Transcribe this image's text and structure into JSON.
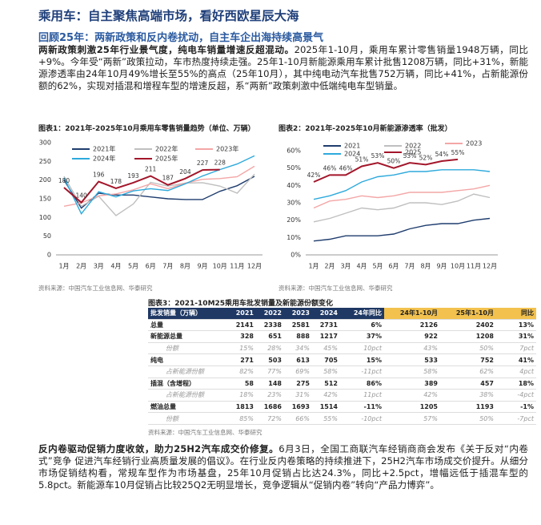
{
  "header": {
    "title": "乘用车：自主聚焦高端市场，看好西欧星辰大海",
    "subtitle": "回顾25年：两新政策和反内卷扰动，自主车企出海持续高景气"
  },
  "paragraphs": [
    {
      "lead": "两新政策刺激25年行业景气度，纯电车销量增速反超混动。",
      "body": "2025年1-10月，乘用车累计零售销量1948万辆，同比+9%。今年受“两新”政策拉动，车市热度持续走强。25年1-10月新能源乘用车累计批售1208万辆，同比+31%，新能源渗透率由24年10月49%增长至55%的高点（25年10月），其中纯电动汽车批售752万辆，同比+41%，占新能源份额的62%，实现对插混和增程车型的增速反超，系“两新”政策刺激中低端纯电车型销量。"
    },
    {
      "lead": "反内卷驱动促销力度收敛，助力25H2汽车成交价修复。",
      "body": "6月3日，全国工商联汽车经销商商会发布《关于反对“内卷式”竞争 促进汽车经销行业高质量发展的倡议》。在行业反内卷策略的持续推进下，25H2汽车市场成交价提升。从细分市场促销结构看，常规车型作为市场基盘，25年10月促销占比达24.3%，同比+2.5pct，增幅远低于插混车型的5.8pct。新能源车10月促销占比较25Q2无明显增长，竞争逻辑从“促销内卷”转向“产品力博弈”。"
    }
  ],
  "chart_data": [
    {
      "type": "line",
      "title": "图表1：2021年-2025年10月乘用车零售销量趋势（单位、万辆）",
      "source": "资料来源：中国汽车工业信息网、华泰研究",
      "categories": [
        "1月",
        "2月",
        "3月",
        "4月",
        "5月",
        "6月",
        "7月",
        "8月",
        "9月",
        "10月",
        "11月",
        "12月"
      ],
      "ylim": [
        0,
        300
      ],
      "yticks": [
        0,
        50,
        100,
        150,
        200,
        250,
        300
      ],
      "grid": false,
      "series": [
        {
          "name": "2021年",
          "color": "#1f3d6e",
          "values": [
            200,
            125,
            165,
            160,
            160,
            155,
            150,
            148,
            148,
            170,
            185,
            210
          ]
        },
        {
          "name": "2022年",
          "color": "#bfbfbf",
          "values": [
            210,
            130,
            157,
            105,
            136,
            194,
            184,
            192,
            193,
            184,
            165,
            216
          ]
        },
        {
          "name": "2023年",
          "color": "#f4a6a6",
          "values": [
            130,
            139,
            158,
            163,
            174,
            190,
            177,
            192,
            202,
            204,
            209,
            237
          ]
        },
        {
          "name": "2024年",
          "color": "#2eaadc",
          "values": [
            206,
            110,
            169,
            155,
            171,
            177,
            172,
            190,
            211,
            228,
            243,
            265
          ]
        },
        {
          "name": "2025年",
          "color": "#a3162a",
          "data_labels": true,
          "values": [
            180,
            140,
            196,
            178,
            193,
            211,
            187,
            204,
            227,
            228,
            null,
            null
          ]
        }
      ]
    },
    {
      "type": "line",
      "title": "图表2：2021年-2025年10月新能源渗透率（批发）",
      "source": "资料来源：中国汽车工业信息网、华泰研究",
      "categories": [
        "1月",
        "2月",
        "3月",
        "4月",
        "5月",
        "6月",
        "7月",
        "8月",
        "9月",
        "10月",
        "11月",
        "12月"
      ],
      "ylim": [
        0,
        60
      ],
      "yticks": [
        {
          "value": 0,
          "label": "0%"
        },
        {
          "value": 10,
          "label": "10%"
        },
        {
          "value": 20,
          "label": "20%"
        },
        {
          "value": 30,
          "label": "30%"
        },
        {
          "value": 40,
          "label": "40%"
        },
        {
          "value": 50,
          "label": "50%"
        },
        {
          "value": 60,
          "label": "60%"
        }
      ],
      "grid": false,
      "series": [
        {
          "name": "2021",
          "color": "#1f3d6e",
          "values": [
            8,
            9,
            11,
            11,
            11,
            12,
            15,
            17,
            18,
            18,
            20,
            21
          ]
        },
        {
          "name": "2022",
          "color": "#bfbfbf",
          "values": [
            19,
            21,
            24,
            27,
            26,
            27,
            30,
            30,
            29,
            31,
            35,
            33
          ]
        },
        {
          "name": "2023",
          "color": "#f4a6a6",
          "values": [
            27,
            31,
            32,
            34,
            33,
            34,
            36,
            36,
            36,
            37,
            38,
            40
          ]
        },
        {
          "name": "2024",
          "color": "#2eaadc",
          "values": [
            32,
            34,
            37,
            42,
            45,
            46,
            48,
            48,
            49,
            49,
            49,
            48
          ]
        },
        {
          "name": "2025",
          "color": "#a3162a",
          "values": [
            42,
            46,
            46,
            51,
            53,
            50,
            53,
            52,
            54,
            55,
            null,
            null
          ],
          "value_labels": [
            "42%",
            "46%",
            "46%",
            "51%",
            "53%",
            "50%",
            "53%",
            "52%",
            "54%",
            "55%",
            null,
            null
          ]
        }
      ]
    }
  ],
  "table": {
    "title": "图表3：2021-10M25乘用车批发销量及新能源份额变化",
    "source": "资料来源：中国汽车工业信息网、华泰研究",
    "header": [
      "批发销量（万辆）",
      "2021",
      "2022",
      "2023",
      "2024",
      "24年同比",
      "24年1-10月",
      "25年1-10月",
      "同比"
    ],
    "rows": [
      [
        "总量",
        "2141",
        "2338",
        "2581",
        "2731",
        "6%",
        "2126",
        "2402",
        "13%"
      ],
      [
        "新能源总量",
        "328",
        "651",
        "888",
        "1217",
        "37%",
        "922",
        "1208",
        "31%"
      ],
      [
        "份额",
        "15%",
        "28%",
        "34%",
        "45%",
        "10pct",
        "43%",
        "50%",
        "7pct"
      ],
      [
        "纯电",
        "271",
        "503",
        "613",
        "705",
        "15%",
        "533",
        "752",
        "41%"
      ],
      [
        "占新能源份额",
        "82%",
        "77%",
        "69%",
        "58%",
        "-11pct",
        "58%",
        "62%",
        "4pct"
      ],
      [
        "插混（含增程）",
        "58",
        "148",
        "275",
        "512",
        "86%",
        "389",
        "457",
        "18%"
      ],
      [
        "占新能源份额",
        "18%",
        "23%",
        "31%",
        "42%",
        "11pct",
        "42%",
        "38%",
        "-4pct"
      ],
      [
        "燃油总量",
        "1813",
        "1686",
        "1693",
        "1514",
        "-11%",
        "1205",
        "1193",
        "-1%"
      ],
      [
        "份额",
        "85%",
        "72%",
        "66%",
        "55%",
        "-10pct",
        "57%",
        "50%",
        "-7pct"
      ]
    ]
  }
}
